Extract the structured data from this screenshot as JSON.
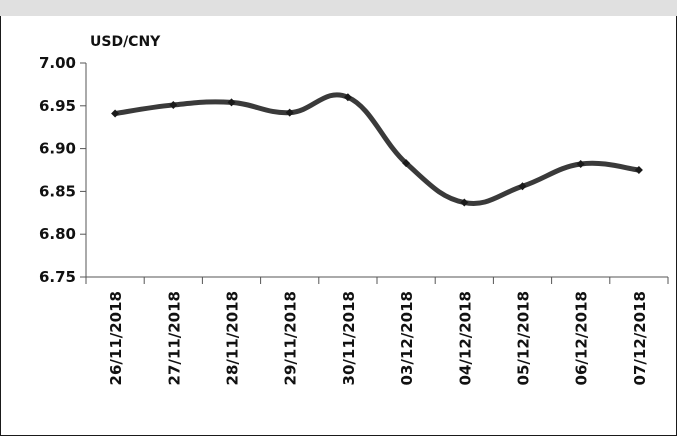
{
  "chart_data": {
    "type": "line",
    "title": "",
    "ylabel": "USD/CNY",
    "xlabel": "",
    "ylim": [
      6.75,
      7.0
    ],
    "yticks": [
      "7.00",
      "6.95",
      "6.90",
      "6.85",
      "6.80",
      "6.75"
    ],
    "categories": [
      "26/11/2018",
      "27/11/2018",
      "28/11/2018",
      "29/11/2018",
      "30/11/2018",
      "03/12/2018",
      "04/12/2018",
      "05/12/2018",
      "06/12/2018",
      "07/12/2018"
    ],
    "series": [
      {
        "values": [
          6.941,
          6.951,
          6.954,
          6.942,
          6.96,
          6.883,
          6.837,
          6.856,
          6.882,
          6.875
        ]
      }
    ],
    "grid": false,
    "legend": "none",
    "line_color": "#3a3a3a",
    "marker": "diamond",
    "smooth": true
  }
}
